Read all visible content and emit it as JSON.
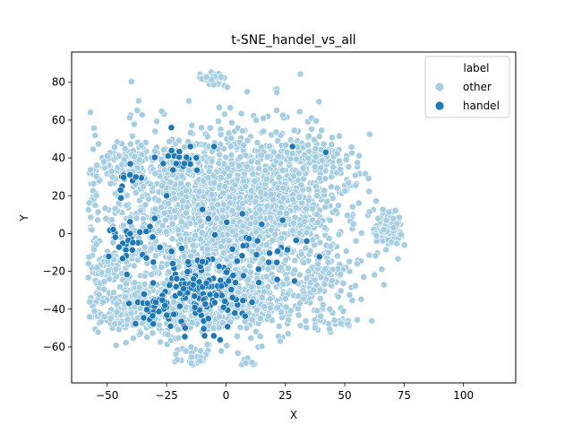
{
  "chart_data": {
    "type": "scatter",
    "title": "t-SNE_handel_vs_all",
    "xlabel": "X",
    "ylabel": "Y",
    "xlim": [
      -65,
      122
    ],
    "ylim": [
      -79,
      96
    ],
    "xticks": [
      -50,
      -25,
      0,
      25,
      50,
      75,
      100
    ],
    "yticks": [
      -60,
      -40,
      -20,
      0,
      20,
      40,
      60,
      80
    ],
    "grid": false,
    "legend": {
      "title": "label",
      "placement": "top-right",
      "entries": [
        "other",
        "handel"
      ]
    },
    "colors": {
      "other": "#a6cee3",
      "handel": "#1f78b4",
      "edge": "#ffffff"
    },
    "series": [
      {
        "name": "other",
        "color": "#a6cee3",
        "clusters": [
          {
            "cx": -5,
            "cy": 5,
            "sx": 26,
            "sy": 24,
            "n": 1500
          },
          {
            "cx": 18,
            "cy": 22,
            "sx": 16,
            "sy": 14,
            "n": 500
          },
          {
            "cx": -42,
            "cy": -38,
            "sx": 8,
            "sy": 6,
            "n": 170
          },
          {
            "cx": -18,
            "cy": -40,
            "sx": 10,
            "sy": 9,
            "n": 220
          },
          {
            "cx": 10,
            "cy": -38,
            "sx": 12,
            "sy": 9,
            "n": 220
          },
          {
            "cx": 40,
            "cy": -28,
            "sx": 7,
            "sy": 10,
            "n": 120
          },
          {
            "cx": -35,
            "cy": 38,
            "sx": 12,
            "sy": 6,
            "n": 140
          },
          {
            "cx": 38,
            "cy": 40,
            "sx": 8,
            "sy": 5,
            "n": 80
          },
          {
            "cx": 68,
            "cy": 2,
            "sx": 3,
            "sy": 4,
            "n": 110
          },
          {
            "cx": -5,
            "cy": 82,
            "sx": 3,
            "sy": 1.6,
            "n": 45
          },
          {
            "cx": -15,
            "cy": -66,
            "sx": 3,
            "sy": 2,
            "n": 22
          },
          {
            "cx": 10,
            "cy": -68,
            "sx": 2,
            "sy": 1,
            "n": 8
          },
          {
            "cx": -50,
            "cy": -18,
            "sx": 4,
            "sy": 4,
            "n": 40
          },
          {
            "cx": 48,
            "cy": -47,
            "sx": 3,
            "sy": 1,
            "n": 12
          }
        ]
      },
      {
        "name": "handel",
        "color": "#1f78b4",
        "clusters": [
          {
            "cx": -13,
            "cy": -33,
            "sx": 10,
            "sy": 9,
            "n": 140
          },
          {
            "cx": -30,
            "cy": -38,
            "sx": 5,
            "sy": 4,
            "n": 25
          },
          {
            "cx": -40,
            "cy": -5,
            "sx": 5,
            "sy": 5,
            "n": 30
          },
          {
            "cx": -18,
            "cy": 38,
            "sx": 5,
            "sy": 3,
            "n": 18
          },
          {
            "cx": -42,
            "cy": 28,
            "sx": 3,
            "sy": 5,
            "n": 12
          },
          {
            "cx": 5,
            "cy": -5,
            "sx": 15,
            "sy": 12,
            "n": 25
          },
          {
            "cx": 30,
            "cy": -15,
            "sx": 12,
            "sy": 10,
            "n": 10
          }
        ],
        "points": [
          [
            -23,
            56
          ],
          [
            -15,
            46
          ],
          [
            -5,
            46
          ],
          [
            28,
            46
          ],
          [
            42,
            43
          ],
          [
            34,
            -4
          ],
          [
            -25,
            20
          ],
          [
            -30,
            8
          ]
        ]
      }
    ]
  }
}
